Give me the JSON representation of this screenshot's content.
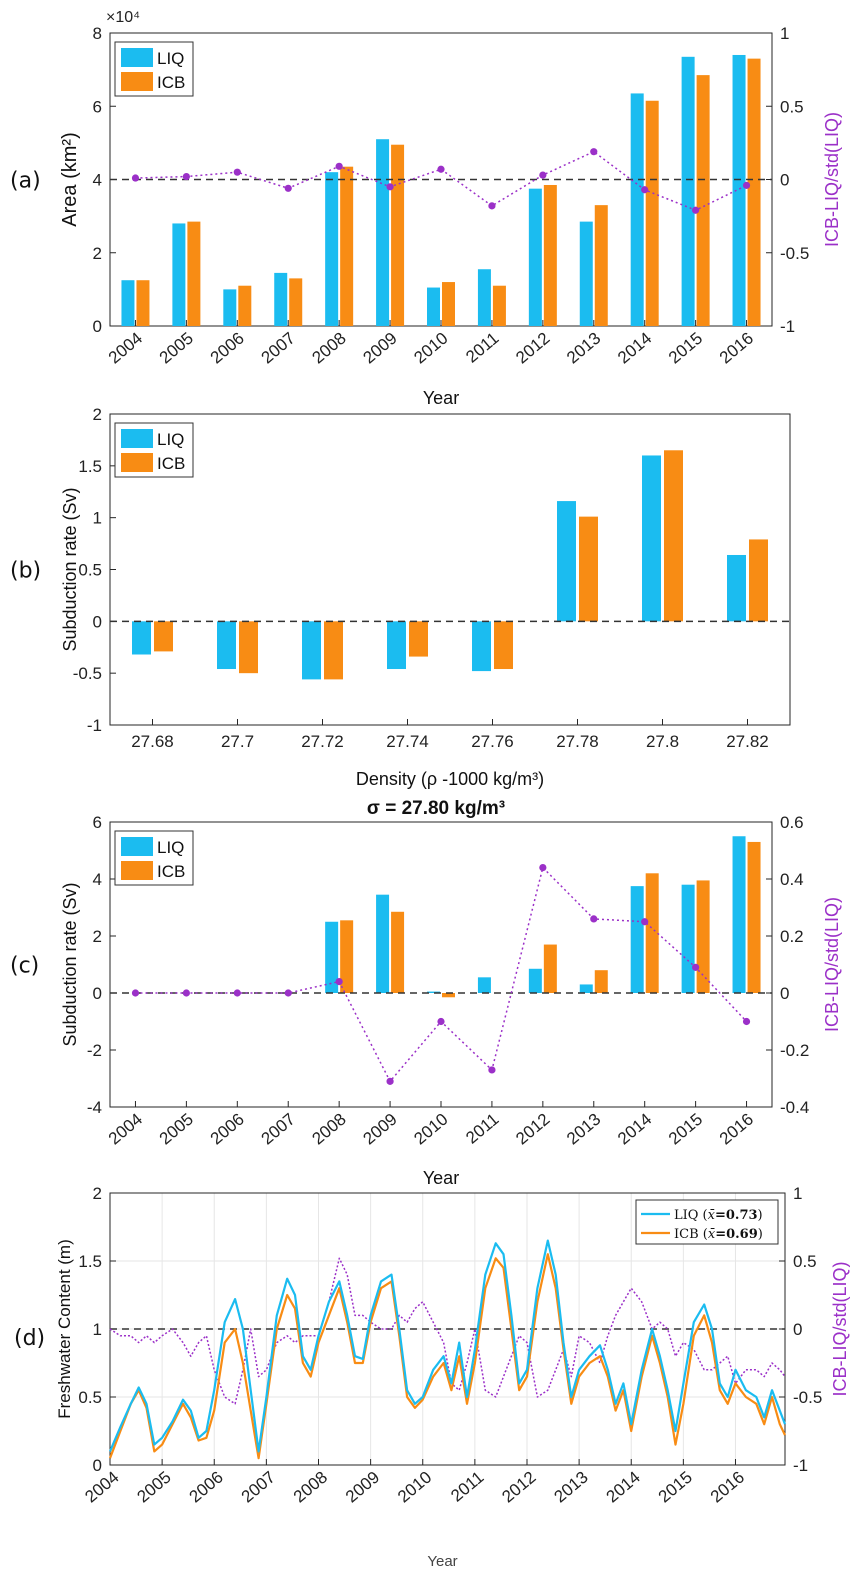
{
  "colors": {
    "liq": "#1bbcf0",
    "icb": "#f88c14",
    "diff": "#9b30c8",
    "zero_line": "#333333",
    "grid": "#e6e6e6",
    "axis": "#262626"
  },
  "chart_data": [
    {
      "panel_label": "(a)",
      "type": "bar",
      "ylabel": "Area (km²)",
      "exponent_label": "×10⁴",
      "xlabel": "Year",
      "y2label": "ICB-LIQ/std(LIQ)",
      "legend": [
        "LIQ",
        "ICB"
      ],
      "legend_position": "top-left",
      "grid": false,
      "ylim": [
        0,
        8
      ],
      "y2lim": [
        -1,
        1
      ],
      "yticks": [
        "0",
        "2",
        "4",
        "6",
        "8"
      ],
      "y2ticks": [
        "-1",
        "-0.5",
        "0",
        "0.5",
        "1"
      ],
      "categories": [
        "2004",
        "2005",
        "2006",
        "2007",
        "2008",
        "2009",
        "2010",
        "2011",
        "2012",
        "2013",
        "2014",
        "2015",
        "2016"
      ],
      "series": [
        {
          "name": "LIQ",
          "values": [
            1.25,
            2.8,
            1.0,
            1.45,
            4.2,
            5.1,
            1.05,
            1.55,
            3.75,
            2.85,
            6.35,
            7.35,
            7.4
          ]
        },
        {
          "name": "ICB",
          "values": [
            1.25,
            2.85,
            1.1,
            1.3,
            4.35,
            4.95,
            1.2,
            1.1,
            3.85,
            3.3,
            6.15,
            6.85,
            7.3
          ]
        }
      ],
      "diff_series": [
        0.01,
        0.02,
        0.05,
        -0.06,
        0.09,
        -0.05,
        0.07,
        -0.18,
        0.03,
        0.19,
        -0.07,
        -0.21,
        -0.04
      ]
    },
    {
      "panel_label": "(b)",
      "type": "bar",
      "ylabel": "Subduction rate (Sv)",
      "xlabel": "Density (ρ -1000 kg/m³)",
      "legend": [
        "LIQ",
        "ICB"
      ],
      "legend_position": "top-left",
      "grid": false,
      "ylim": [
        -1,
        2
      ],
      "yticks": [
        "-1",
        "-0.5",
        "0",
        "0.5",
        "1",
        "1.5",
        "2"
      ],
      "categories": [
        "27.68",
        "27.7",
        "27.72",
        "27.74",
        "27.76",
        "27.78",
        "27.8",
        "27.82"
      ],
      "series": [
        {
          "name": "LIQ",
          "values": [
            -0.32,
            -0.46,
            -0.56,
            -0.46,
            -0.48,
            1.16,
            1.6,
            0.64
          ]
        },
        {
          "name": "ICB",
          "values": [
            -0.29,
            -0.5,
            -0.56,
            -0.34,
            -0.46,
            1.01,
            1.65,
            0.79
          ]
        }
      ]
    },
    {
      "panel_label": "(c)",
      "type": "bar",
      "title": "σ = 27.80 kg/m³",
      "ylabel": "Subduction rate (Sv)",
      "xlabel": "Year",
      "y2label": "ICB-LIQ/std(LIQ)",
      "legend": [
        "LIQ",
        "ICB"
      ],
      "legend_position": "top-left",
      "grid": false,
      "ylim": [
        -4,
        6
      ],
      "y2lim": [
        -0.4,
        0.6
      ],
      "yticks": [
        "-4",
        "-2",
        "0",
        "2",
        "4",
        "6"
      ],
      "y2ticks": [
        "-0.4",
        "-0.2",
        "0",
        "0.2",
        "0.4",
        "0.6"
      ],
      "categories": [
        "2004",
        "2005",
        "2006",
        "2007",
        "2008",
        "2009",
        "2010",
        "2011",
        "2012",
        "2013",
        "2014",
        "2015",
        "2016"
      ],
      "series": [
        {
          "name": "LIQ",
          "values": [
            0,
            0,
            0,
            0,
            2.5,
            3.45,
            0.05,
            0.55,
            0.85,
            0.3,
            3.75,
            3.8,
            5.5
          ]
        },
        {
          "name": "ICB",
          "values": [
            0,
            0,
            0,
            0,
            2.55,
            2.85,
            -0.15,
            0,
            1.7,
            0.8,
            4.2,
            3.95,
            5.3
          ]
        }
      ],
      "diff_series": [
        0,
        0,
        0,
        0,
        0.04,
        -0.31,
        -0.1,
        -0.27,
        0.44,
        0.26,
        0.25,
        0.09,
        -0.1
      ]
    },
    {
      "panel_label": "(d)",
      "type": "line",
      "ylabel": "Freshwater Content (m)",
      "xlabel": "Year",
      "y2label": "ICB-LIQ/std(LIQ)",
      "legend_position": "top-right",
      "legend_entries": [
        {
          "key": "LIQ",
          "prefix": "LIQ (",
          "mean_symbol": "x̄",
          "mean_text": "=0.73",
          "suffix": ")"
        },
        {
          "key": "ICB",
          "prefix": "ICB (",
          "mean_symbol": "x̄",
          "mean_text": "=0.69",
          "suffix": ")"
        }
      ],
      "grid": true,
      "xlim": [
        2004,
        2016.95
      ],
      "ylim": [
        0,
        2
      ],
      "y2lim": [
        -1,
        1
      ],
      "yticks": [
        "0",
        "0.5",
        "1",
        "1.5",
        "2"
      ],
      "y2ticks": [
        "-1",
        "-0.5",
        "0",
        "0.5",
        "1"
      ],
      "xticks": [
        "2004",
        "2005",
        "2006",
        "2007",
        "2008",
        "2009",
        "2010",
        "2011",
        "2012",
        "2013",
        "2014",
        "2015",
        "2016"
      ],
      "x": [
        2004.0,
        2004.2,
        2004.4,
        2004.55,
        2004.7,
        2004.85,
        2005.0,
        2005.2,
        2005.4,
        2005.55,
        2005.7,
        2005.85,
        2006.0,
        2006.2,
        2006.4,
        2006.55,
        2006.7,
        2006.85,
        2007.0,
        2007.2,
        2007.4,
        2007.55,
        2007.7,
        2007.85,
        2008.0,
        2008.2,
        2008.4,
        2008.55,
        2008.7,
        2008.85,
        2009.0,
        2009.2,
        2009.4,
        2009.55,
        2009.7,
        2009.85,
        2010.0,
        2010.2,
        2010.4,
        2010.55,
        2010.7,
        2010.85,
        2011.0,
        2011.2,
        2011.4,
        2011.55,
        2011.7,
        2011.85,
        2012.0,
        2012.2,
        2012.4,
        2012.55,
        2012.7,
        2012.85,
        2013.0,
        2013.2,
        2013.4,
        2013.55,
        2013.7,
        2013.85,
        2014.0,
        2014.2,
        2014.4,
        2014.55,
        2014.7,
        2014.85,
        2015.0,
        2015.2,
        2015.4,
        2015.55,
        2015.7,
        2015.85,
        2016.0,
        2016.2,
        2016.4,
        2016.55,
        2016.7,
        2016.85,
        2016.95
      ],
      "series": [
        {
          "name": "LIQ",
          "values": [
            0.1,
            0.28,
            0.45,
            0.57,
            0.45,
            0.15,
            0.2,
            0.32,
            0.48,
            0.4,
            0.2,
            0.25,
            0.55,
            1.05,
            1.22,
            1.0,
            0.55,
            0.1,
            0.5,
            1.1,
            1.37,
            1.25,
            0.8,
            0.7,
            0.95,
            1.2,
            1.35,
            1.1,
            0.8,
            0.78,
            1.1,
            1.35,
            1.4,
            1.0,
            0.55,
            0.45,
            0.5,
            0.7,
            0.8,
            0.6,
            0.9,
            0.5,
            0.85,
            1.4,
            1.63,
            1.55,
            1.1,
            0.6,
            0.7,
            1.3,
            1.65,
            1.4,
            0.9,
            0.5,
            0.7,
            0.8,
            0.88,
            0.7,
            0.45,
            0.6,
            0.3,
            0.7,
            1.0,
            0.8,
            0.55,
            0.25,
            0.6,
            1.05,
            1.18,
            1.0,
            0.6,
            0.5,
            0.7,
            0.55,
            0.5,
            0.35,
            0.55,
            0.4,
            0.3
          ]
        },
        {
          "name": "ICB",
          "values": [
            0.05,
            0.25,
            0.45,
            0.55,
            0.42,
            0.1,
            0.15,
            0.3,
            0.45,
            0.35,
            0.18,
            0.2,
            0.4,
            0.9,
            1.0,
            0.75,
            0.4,
            0.05,
            0.45,
            1.0,
            1.25,
            1.15,
            0.75,
            0.65,
            0.9,
            1.1,
            1.3,
            1.05,
            0.75,
            0.75,
            1.05,
            1.3,
            1.35,
            0.95,
            0.5,
            0.42,
            0.48,
            0.65,
            0.75,
            0.55,
            0.8,
            0.45,
            0.75,
            1.3,
            1.52,
            1.45,
            1.0,
            0.55,
            0.65,
            1.2,
            1.55,
            1.3,
            0.85,
            0.45,
            0.65,
            0.75,
            0.8,
            0.65,
            0.4,
            0.55,
            0.25,
            0.65,
            0.95,
            0.75,
            0.5,
            0.15,
            0.45,
            0.95,
            1.1,
            0.9,
            0.55,
            0.45,
            0.6,
            0.5,
            0.45,
            0.3,
            0.5,
            0.3,
            0.22
          ]
        },
        {
          "name": "ICB-LIQ/std(LIQ)",
          "axis": "right",
          "values": [
            0.0,
            -0.05,
            -0.05,
            -0.1,
            -0.05,
            -0.1,
            -0.05,
            0.0,
            -0.1,
            -0.2,
            -0.1,
            -0.05,
            -0.3,
            -0.5,
            -0.55,
            -0.3,
            0.0,
            -0.35,
            -0.3,
            -0.1,
            -0.05,
            -0.1,
            -0.05,
            -0.05,
            -0.05,
            0.2,
            0.52,
            0.4,
            0.1,
            0.1,
            0.05,
            0.0,
            0.0,
            0.1,
            0.05,
            0.15,
            0.2,
            0.05,
            -0.1,
            -0.4,
            -0.45,
            -0.25,
            0.0,
            -0.45,
            -0.5,
            -0.35,
            -0.2,
            -0.05,
            -0.1,
            -0.5,
            -0.45,
            -0.3,
            -0.15,
            -0.35,
            -0.05,
            -0.1,
            -0.25,
            -0.05,
            0.1,
            0.2,
            0.3,
            0.2,
            0.0,
            0.05,
            0.0,
            -0.2,
            -0.1,
            -0.15,
            -0.3,
            -0.3,
            -0.25,
            -0.2,
            -0.4,
            -0.3,
            -0.3,
            -0.35,
            -0.25,
            -0.3,
            -0.35
          ]
        }
      ]
    }
  ]
}
